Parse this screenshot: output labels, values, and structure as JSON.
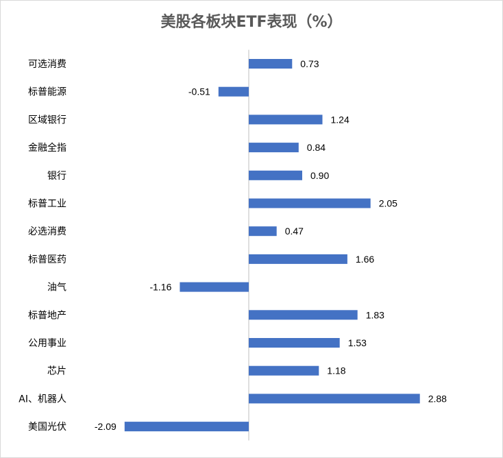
{
  "chart_data": {
    "type": "bar",
    "orientation": "horizontal",
    "title": "美股各板块ETF表现（%）",
    "categories": [
      "可选消费",
      "标普能源",
      "区域银行",
      "金融全指",
      "银行",
      "标普工业",
      "必选消费",
      "标普医药",
      "油气",
      "标普地产",
      "公用事业",
      "芯片",
      "AI、机器人",
      "美国光伏"
    ],
    "values": [
      0.73,
      -0.51,
      1.24,
      0.84,
      0.9,
      2.05,
      0.47,
      1.66,
      -1.16,
      1.83,
      1.53,
      1.18,
      2.88,
      -2.09
    ],
    "value_labels": [
      "0.73",
      "-0.51",
      "1.24",
      "0.84",
      "0.90",
      "2.05",
      "0.47",
      "1.66",
      "-1.16",
      "1.83",
      "1.53",
      "1.18",
      "2.88",
      "-2.09"
    ],
    "bar_color": "#4472c4",
    "grid": false,
    "legend": "none"
  }
}
